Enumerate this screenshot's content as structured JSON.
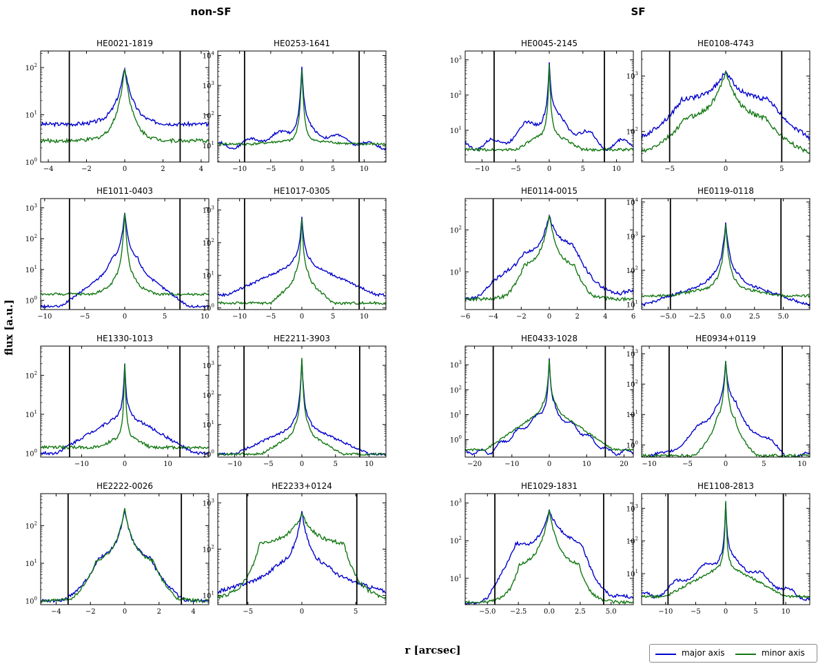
{
  "group_titles": {
    "left": "non-SF",
    "right": "SF"
  },
  "axis_labels": {
    "x": "r [arcsec]",
    "y": "flux [a.u.]"
  },
  "legend": {
    "major": "major axis",
    "minor": "minor axis"
  },
  "colors": {
    "major": "#0000cc",
    "minor": "#117711",
    "vline": "#000000",
    "frame": "#000000"
  },
  "chart_data": [
    {
      "type": "line",
      "title": "HE0021-1819",
      "xlim": [
        -4.4,
        4.4
      ],
      "ylim_log": [
        0.0,
        2.35
      ],
      "xticks": [
        -4,
        -2,
        0,
        2,
        4
      ],
      "xticklabels": [
        "−4",
        "−2",
        "0",
        "2",
        "4"
      ],
      "yticks": [
        0,
        1,
        2
      ],
      "vline": 2.9,
      "major": {
        "peak": 2.0,
        "wing": 0.8,
        "core": 0.5,
        "halo": 1.3,
        "hw": 3.0,
        "asym": 0
      },
      "minor": {
        "peak": 2.0,
        "wing": 0.45,
        "core": 0.45,
        "halo": 1.3,
        "hw": 2.2,
        "asym": 0,
        "shift": 0
      }
    },
    {
      "type": "line",
      "title": "HE0253-1641",
      "xlim": [
        -13.5,
        13.5
      ],
      "ylim_log": [
        0.45,
        4.15
      ],
      "xticks": [
        -10,
        -5,
        0,
        5,
        10
      ],
      "xticklabels": [
        "−10",
        "−5",
        "0",
        "5",
        "10"
      ],
      "yticks": [
        1,
        2,
        3,
        4
      ],
      "vline": 9.2,
      "major": {
        "peak": 3.65,
        "wing": 1.55,
        "core": 0.45,
        "halo": 1.0,
        "hw": 11,
        "asym": 0.1
      },
      "minor": {
        "peak": 3.55,
        "wing": 1.2,
        "core": 0.4,
        "halo": 1.05,
        "hw": 8,
        "asym": 0,
        "shift": 0
      }
    },
    {
      "type": "line",
      "title": "HE0045-2145",
      "xlim": [
        -12.5,
        12.5
      ],
      "ylim_log": [
        0.1,
        3.25
      ],
      "xticks": [
        -10,
        -5,
        0,
        5,
        10
      ],
      "xticklabels": [
        "−10",
        "−5",
        "0",
        "5",
        "10"
      ],
      "yticks": [
        1,
        2,
        3
      ],
      "vline": 8.2,
      "major": {
        "peak": 2.95,
        "wing": 1.45,
        "core": 0.3,
        "halo": 0.6,
        "hw": 8,
        "asym": 0.15
      },
      "minor": {
        "peak": 2.9,
        "wing": 1.0,
        "core": 0.25,
        "halo": 0.45,
        "hw": 5,
        "asym": 0,
        "shift": 0
      }
    },
    {
      "type": "line",
      "title": "HE0108-4743",
      "xlim": [
        -7.5,
        7.5
      ],
      "ylim_log": [
        1.45,
        3.45
      ],
      "xticks": [
        -5,
        0,
        5
      ],
      "xticklabels": [
        "−5",
        "0",
        "5"
      ],
      "yticks": [
        2,
        3
      ],
      "vline": 5.0,
      "major": {
        "peak": 3.1,
        "wing": 2.55,
        "core": 1.3,
        "halo": 1.8,
        "hw": 8,
        "asym": 0
      },
      "minor": {
        "peak": 3.1,
        "wing": 2.2,
        "core": 1.2,
        "halo": 1.62,
        "hw": 7,
        "asym": 0,
        "shift": 0
      }
    },
    {
      "type": "line",
      "title": "HE1011-0403",
      "xlim": [
        -10.5,
        10.5
      ],
      "ylim_log": [
        -0.3,
        3.3
      ],
      "xticks": [
        -10,
        -5,
        0,
        5,
        10
      ],
      "xticklabels": [
        "−10",
        "−5",
        "0",
        "5",
        "10"
      ],
      "yticks": [
        0,
        1,
        2,
        3
      ],
      "vline": 6.9,
      "major": {
        "peak": 2.85,
        "wing": 1.3,
        "core": 0.55,
        "halo": -0.2,
        "hw": 8,
        "asym": 0
      },
      "minor": {
        "peak": 2.85,
        "wing": 0.6,
        "core": 0.45,
        "halo": 0.2,
        "hw": 4,
        "asym": 0,
        "shift": 0
      }
    },
    {
      "type": "line",
      "title": "HE1017-0305",
      "xlim": [
        -13.5,
        13.5
      ],
      "ylim_log": [
        -0.05,
        3.35
      ],
      "xticks": [
        -10,
        -5,
        0,
        5,
        10
      ],
      "xticklabels": [
        "−10",
        "−5",
        "0",
        "5",
        "10"
      ],
      "yticks": [
        0,
        1,
        2,
        3
      ],
      "vline": 9.2,
      "major": {
        "peak": 2.8,
        "wing": 1.45,
        "core": 0.45,
        "halo": 0.4,
        "hw": 12,
        "asym": 0
      },
      "minor": {
        "peak": 2.75,
        "wing": 1.0,
        "core": 0.35,
        "halo": 0.15,
        "hw": 5,
        "asym": 0,
        "shift": 0
      }
    },
    {
      "type": "line",
      "title": "HE0114-0015",
      "xlim": [
        -6.0,
        6.0
      ],
      "ylim_log": [
        0.1,
        2.75
      ],
      "xticks": [
        -6,
        -4,
        -2,
        0,
        2,
        4,
        6
      ],
      "xticklabels": [
        "−6",
        "−4",
        "−2",
        "0",
        "2",
        "4",
        "6"
      ],
      "yticks": [
        1,
        2
      ],
      "vline": 4.0,
      "major": {
        "peak": 2.35,
        "wing": 1.5,
        "core": 0.6,
        "halo": 0.45,
        "hw": 5,
        "asym": 0.1
      },
      "minor": {
        "peak": 2.35,
        "wing": 1.1,
        "core": 0.6,
        "halo": 0.35,
        "hw": 3,
        "asym": 0,
        "shift": 0
      }
    },
    {
      "type": "line",
      "title": "HE0119-0118",
      "xlim": [
        -7.3,
        7.3
      ],
      "ylim_log": [
        0.85,
        4.1
      ],
      "xticks": [
        -5,
        -2.5,
        0,
        2.5,
        5
      ],
      "xticklabels": [
        "−5.0",
        "−2.5",
        "0.0",
        "2.5",
        "5.0"
      ],
      "yticks": [
        1,
        2,
        3,
        4
      ],
      "vline": 4.8,
      "major": {
        "peak": 3.4,
        "wing": 1.8,
        "core": 0.4,
        "halo": 1.0,
        "hw": 7,
        "asym": 0
      },
      "minor": {
        "peak": 3.35,
        "wing": 1.55,
        "core": 0.35,
        "halo": 1.25,
        "hw": 5,
        "asym": 0,
        "shift": 0
      }
    },
    {
      "type": "line",
      "title": "HE1330-1013",
      "xlim": [
        -19.5,
        19.5
      ],
      "ylim_log": [
        -0.1,
        2.75
      ],
      "xticks": [
        -10,
        0,
        10
      ],
      "xticklabels": [
        "−10",
        "0",
        "10"
      ],
      "yticks": [
        0,
        1,
        2
      ],
      "vline": 12.8,
      "major": {
        "peak": 2.3,
        "wing": 1.05,
        "core": 0.4,
        "halo": 0.0,
        "hw": 16,
        "asym": 0
      },
      "minor": {
        "peak": 2.3,
        "wing": 0.5,
        "core": 0.35,
        "halo": 0.15,
        "hw": 6,
        "asym": 0,
        "shift": 0
      }
    },
    {
      "type": "line",
      "title": "HE2211-3903",
      "xlim": [
        -12.5,
        12.5
      ],
      "ylim_log": [
        -0.1,
        3.65
      ],
      "xticks": [
        -10,
        -5,
        0,
        5,
        10
      ],
      "xticklabels": [
        "−10",
        "−5",
        "0",
        "5",
        "10"
      ],
      "yticks": [
        0,
        1,
        2,
        3
      ],
      "vline": 8.6,
      "major": {
        "peak": 3.2,
        "wing": 1.05,
        "core": 0.4,
        "halo": 0.0,
        "hw": 10,
        "asym": 0
      },
      "minor": {
        "peak": 3.25,
        "wing": 0.85,
        "core": 0.35,
        "halo": 0.0,
        "hw": 6,
        "asym": 0,
        "shift": 0
      }
    },
    {
      "type": "line",
      "title": "HE0433-1028",
      "xlim": [
        -22.5,
        22.5
      ],
      "ylim_log": [
        -0.7,
        3.75
      ],
      "xticks": [
        -20,
        -10,
        0,
        10,
        20
      ],
      "xticklabels": [
        "−20",
        "−10",
        "0",
        "10",
        "20"
      ],
      "yticks": [
        0,
        1,
        2,
        3
      ],
      "vline": 15.0,
      "major": {
        "peak": 3.25,
        "wing": 1.25,
        "core": 0.5,
        "halo": -0.5,
        "hw": 16,
        "asym": 0.1
      },
      "minor": {
        "peak": 3.2,
        "wing": 1.35,
        "core": 0.6,
        "halo": -0.4,
        "hw": 17,
        "asym": 0,
        "shift": 0
      }
    },
    {
      "type": "line",
      "title": "HE0934+0119",
      "xlim": [
        -11.0,
        11.0
      ],
      "ylim_log": [
        -0.4,
        3.25
      ],
      "xticks": [
        -10,
        -5,
        0,
        5,
        10
      ],
      "xticklabels": [
        "−10",
        "−5",
        "0",
        "5",
        "10"
      ],
      "yticks": [
        0,
        1,
        2,
        3
      ],
      "vline": 7.4,
      "major": {
        "peak": 2.75,
        "wing": 1.25,
        "core": 0.45,
        "halo": -0.35,
        "hw": 8,
        "asym": 0.1
      },
      "minor": {
        "peak": 2.75,
        "wing": 0.8,
        "core": 0.4,
        "halo": -0.35,
        "hw": 4,
        "asym": 0,
        "shift": 0
      }
    },
    {
      "type": "line",
      "title": "HE2222-0026",
      "xlim": [
        -4.9,
        4.9
      ],
      "ylim_log": [
        -0.1,
        2.85
      ],
      "xticks": [
        -4,
        -2,
        0,
        2,
        4
      ],
      "xticklabels": [
        "−4",
        "−2",
        "0",
        "2",
        "4"
      ],
      "yticks": [
        0,
        1,
        2
      ],
      "vline": 3.3,
      "major": {
        "peak": 2.4,
        "wing": 1.1,
        "core": 0.5,
        "halo": 0.0,
        "hw": 3.5,
        "asym": 0
      },
      "minor": {
        "peak": 2.45,
        "wing": 1.0,
        "core": 0.55,
        "halo": 0.0,
        "hw": 3,
        "asym": 0,
        "shift": 0
      }
    },
    {
      "type": "line",
      "title": "HE2233+0124",
      "xlim": [
        -7.8,
        7.8
      ],
      "ylim_log": [
        0.8,
        3.2
      ],
      "xticks": [
        -5,
        0,
        5
      ],
      "xticklabels": [
        "−5",
        "0",
        "5"
      ],
      "yticks": [
        1,
        2,
        3
      ],
      "vline": 5.1,
      "major": {
        "peak": 2.8,
        "wing": 1.6,
        "core": 0.8,
        "halo": 1.0,
        "hw": 9,
        "asym": 0
      },
      "minor": {
        "peak": 2.75,
        "wing": 2.1,
        "core": 1.3,
        "halo": 0.9,
        "hw": 4,
        "asym": 0,
        "shift": 0
      }
    },
    {
      "type": "line",
      "title": "HE1029-1831",
      "xlim": [
        -6.8,
        6.8
      ],
      "ylim_log": [
        0.3,
        3.25
      ],
      "xticks": [
        -5,
        -2.5,
        0,
        2.5,
        5
      ],
      "xticklabels": [
        "−5.0",
        "−2.5",
        "0.0",
        "2.5",
        "5.0"
      ],
      "yticks": [
        1,
        2,
        3
      ],
      "vline": 4.4,
      "major": {
        "peak": 2.8,
        "wing": 1.85,
        "core": 0.9,
        "halo": 0.4,
        "hw": 5,
        "asym": 0.1
      },
      "minor": {
        "peak": 2.8,
        "wing": 1.3,
        "core": 0.8,
        "halo": 0.35,
        "hw": 3,
        "asym": 0,
        "shift": 0
      }
    },
    {
      "type": "line",
      "title": "HE1108-2813",
      "xlim": [
        -14.0,
        14.0
      ],
      "ylim_log": [
        0.05,
        3.45
      ],
      "xticks": [
        -10,
        -5,
        0,
        5,
        10
      ],
      "xticklabels": [
        "−10",
        "−5",
        "0",
        "5",
        "10"
      ],
      "yticks": [
        1,
        2,
        3
      ],
      "vline": 9.6,
      "major": {
        "peak": 3.15,
        "wing": 1.55,
        "core": 0.3,
        "halo": 0.3,
        "hw": 12,
        "asym": 0.1
      },
      "minor": {
        "peak": 3.2,
        "wing": 1.3,
        "core": 0.25,
        "halo": 0.3,
        "hw": 10,
        "asym": 0,
        "shift": 0
      }
    }
  ]
}
